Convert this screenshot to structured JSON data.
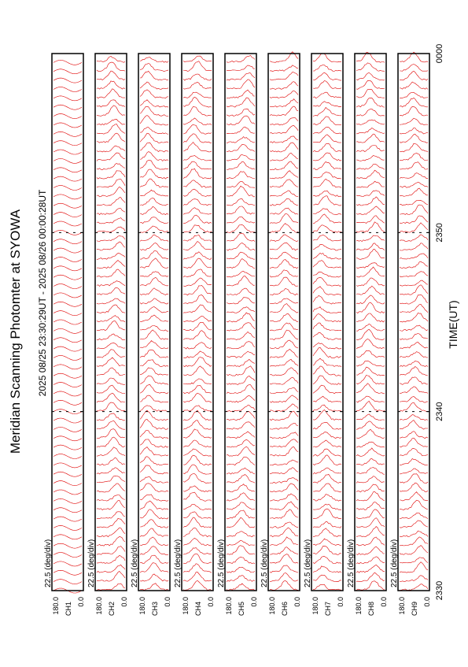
{
  "title": "Meridian Scanning Photomter at SYOWA",
  "subtitle": "2025 08/25 23:30:29UT - 2025 08/26 00:00:28UT",
  "x_axis": {
    "label": "TIME(UT)",
    "ticks": [
      "2330",
      "2340",
      "2350",
      "0000"
    ]
  },
  "panels": [
    {
      "channel": "CH1",
      "scale": "22.5 (deg/div)",
      "top": "180.0",
      "bottom": "0.0"
    },
    {
      "channel": "CH2",
      "scale": "22.5 (deg/div)",
      "top": "180.0",
      "bottom": "0.0"
    },
    {
      "channel": "CH3",
      "scale": "22.5 (deg/div)",
      "top": "180.0",
      "bottom": "0.0"
    },
    {
      "channel": "CH4",
      "scale": "22.5 (deg/div)",
      "top": "180.0",
      "bottom": "0.0"
    },
    {
      "channel": "CH5",
      "scale": "22.5 (deg/div)",
      "top": "180.0",
      "bottom": "0.0"
    },
    {
      "channel": "CH6",
      "scale": "22.5 (deg/div)",
      "top": "180.0",
      "bottom": "0.0"
    },
    {
      "channel": "CH7",
      "scale": "22.5 (deg/div)",
      "top": "180.0",
      "bottom": "0.0"
    },
    {
      "channel": "CH8",
      "scale": "22.5 (deg/div)",
      "top": "180.0",
      "bottom": "0.0"
    },
    {
      "channel": "CH9",
      "scale": "22.5 (deg/div)",
      "top": "180.0",
      "bottom": "0.0"
    }
  ]
}
